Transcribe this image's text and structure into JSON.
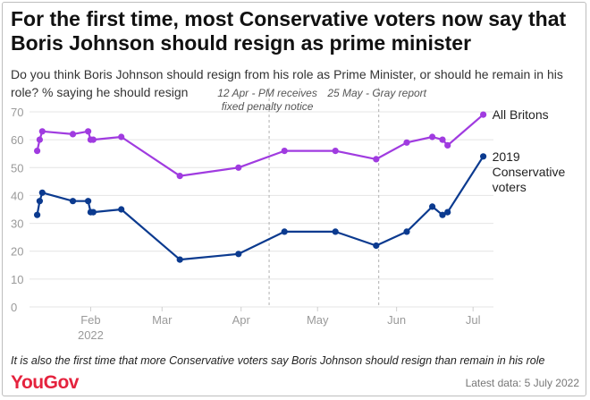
{
  "title": "For the first time, most Conservative voters now say that Boris Johnson should resign as prime minister",
  "subtitle": "Do you think Boris Johnson should resign from his role as Prime Minister, or should he remain in his role? % saying he should resign",
  "footnote": "It is also the first time that more Conservative voters say Boris Johnson should resign than remain in his role",
  "brand": "YouGov",
  "latest_data": "Latest data: 5 July 2022",
  "colors": {
    "all_britons": "#a03be0",
    "conservative": "#0b3a8f",
    "grid": "#e4e4e4",
    "axis_text": "#9a9a9a"
  },
  "chart_data": {
    "type": "line",
    "ylim": [
      0,
      70
    ],
    "yticks": [
      0,
      10,
      20,
      30,
      40,
      50,
      60,
      70
    ],
    "xlim": [
      "2022-01-08",
      "2022-07-09"
    ],
    "xticks": [
      {
        "date": "2022-02-01",
        "label": "Feb",
        "sublabel": "2022"
      },
      {
        "date": "2022-03-01",
        "label": "Mar",
        "sublabel": ""
      },
      {
        "date": "2022-04-01",
        "label": "Apr",
        "sublabel": ""
      },
      {
        "date": "2022-05-01",
        "label": "May",
        "sublabel": ""
      },
      {
        "date": "2022-06-01",
        "label": "Jun",
        "sublabel": ""
      },
      {
        "date": "2022-07-01",
        "label": "Jul",
        "sublabel": ""
      }
    ],
    "annotations": [
      {
        "date": "2022-04-12",
        "lines": [
          "12 Apr - PM receives",
          "fixed penalty notice"
        ]
      },
      {
        "date": "2022-05-25",
        "lines": [
          "25 May - Gray report"
        ]
      }
    ],
    "series": [
      {
        "name": "All Britons",
        "label_lines": [
          "All Britons"
        ],
        "color": "#a03be0",
        "points": [
          [
            "2022-01-11",
            56
          ],
          [
            "2022-01-12",
            60
          ],
          [
            "2022-01-13",
            63
          ],
          [
            "2022-01-25",
            62
          ],
          [
            "2022-01-31",
            63
          ],
          [
            "2022-02-01",
            60
          ],
          [
            "2022-02-02",
            60
          ],
          [
            "2022-02-13",
            61
          ],
          [
            "2022-03-08",
            47
          ],
          [
            "2022-03-31",
            50
          ],
          [
            "2022-04-18",
            56
          ],
          [
            "2022-05-08",
            56
          ],
          [
            "2022-05-24",
            53
          ],
          [
            "2022-06-05",
            59
          ],
          [
            "2022-06-15",
            61
          ],
          [
            "2022-06-19",
            60
          ],
          [
            "2022-06-21",
            58
          ],
          [
            "2022-07-05",
            69
          ]
        ]
      },
      {
        "name": "2019 Conservative voters",
        "label_lines": [
          "2019",
          "Conservative",
          "voters"
        ],
        "color": "#0b3a8f",
        "points": [
          [
            "2022-01-11",
            33
          ],
          [
            "2022-01-12",
            38
          ],
          [
            "2022-01-13",
            41
          ],
          [
            "2022-01-25",
            38
          ],
          [
            "2022-01-31",
            38
          ],
          [
            "2022-02-01",
            34
          ],
          [
            "2022-02-02",
            34
          ],
          [
            "2022-02-13",
            35
          ],
          [
            "2022-03-08",
            17
          ],
          [
            "2022-03-31",
            19
          ],
          [
            "2022-04-18",
            27
          ],
          [
            "2022-05-08",
            27
          ],
          [
            "2022-05-24",
            22
          ],
          [
            "2022-06-05",
            27
          ],
          [
            "2022-06-15",
            36
          ],
          [
            "2022-06-19",
            33
          ],
          [
            "2022-06-21",
            34
          ],
          [
            "2022-07-05",
            54
          ]
        ]
      }
    ]
  }
}
